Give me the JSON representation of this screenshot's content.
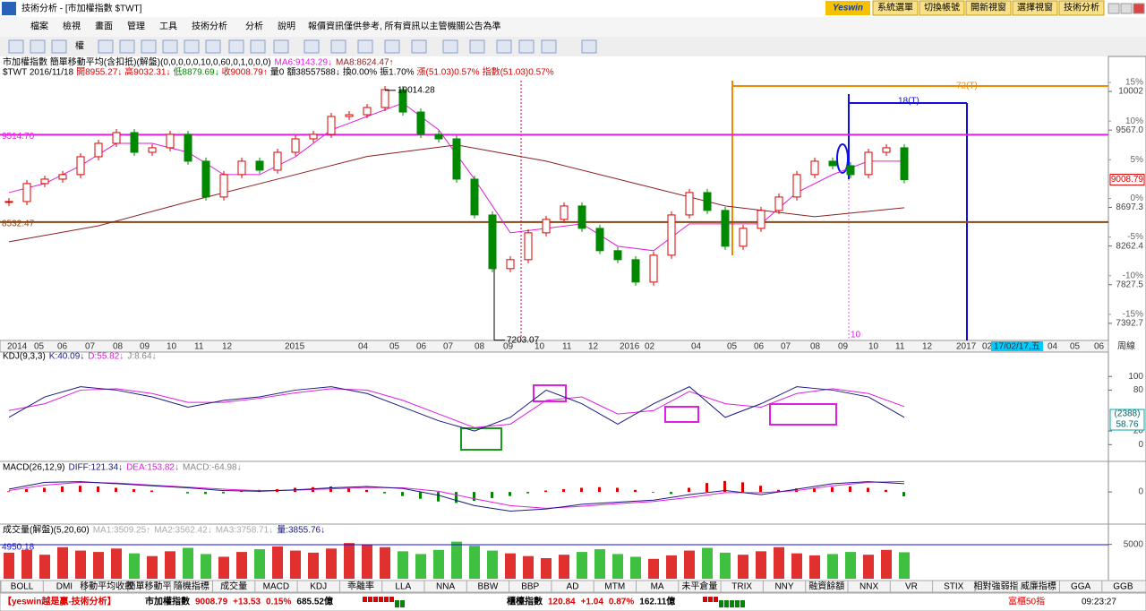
{
  "window": {
    "title": "技術分析 - [市加權指數 $TWT]",
    "logo": "Yeswin",
    "buttons": [
      "系統選單",
      "切換帳號",
      "開新視窗",
      "選擇視窗",
      "技術分析"
    ]
  },
  "menu": {
    "items": [
      "檔案",
      "檢視",
      "畫面",
      "管理",
      "工具",
      "技術分析",
      "分析",
      "說明"
    ],
    "notice": "報價資訊僅供參考, 所有資訊以主管機關公告為準"
  },
  "toolbar": {
    "label": "權"
  },
  "price_panel": {
    "header": [
      "市加權指數 簡單移動平均(含扣抵)(解盤)(0,0,0,0,0,10,0,60,0,1,0,0,0)",
      "MA6:9143.29↓",
      "MA8:8624.47↑"
    ],
    "quote": [
      "$TWT 2016/11/18",
      "開8955.27↓",
      "高9032.31↓",
      "低8879.69↓",
      "收9008.79↑",
      "量0",
      "額38557588↓",
      "換0.00%",
      "振1.70%",
      "漲(51.03)0.57%",
      "指數(51.03)0.57%"
    ],
    "ylim": [
      7200,
      10325
    ],
    "yticks": [
      10002,
      {
        "value": 9567,
        "label": "9567.0"
      },
      8697.3,
      8262.4,
      7827.5,
      7392.7
    ],
    "last_price": 9008.79,
    "pct_ticks": [
      {
        "value": 15,
        "label": "15%"
      },
      {
        "value": 10,
        "label": "10%"
      },
      {
        "value": 5,
        "label": "5%"
      },
      {
        "value": 0,
        "label": "0%"
      },
      {
        "value": -5,
        "label": "-5%"
      },
      {
        "value": -10,
        "label": "-10%"
      },
      {
        "value": -15,
        "label": "-15%"
      }
    ],
    "closes": [
      8763,
      8965,
      9015,
      9066,
      9267,
      9418,
      9539,
      9317,
      9368,
      9519,
      9217,
      8814,
      9066,
      9217,
      9116,
      9317,
      9468,
      9519,
      9720,
      9740,
      9821,
      10022,
      9770,
      9519,
      9468,
      9015,
      8612,
      8008,
      8109,
      8411,
      8562,
      8713,
      8461,
      8210,
      8109,
      7857,
      8159,
      8612,
      8864,
      8663,
      8260,
      8461,
      8663,
      8814,
      9066,
      9217,
      9166,
      9066,
      9317,
      9368,
      9008.79
    ],
    "ma_short": [
      8864,
      8965,
      9166,
      9418,
      9418,
      9317,
      9066,
      9066,
      9267,
      9569,
      9720,
      9871,
      9569,
      9015,
      8411,
      8461,
      8512,
      8260,
      8210,
      8512,
      8512,
      8512,
      8864,
      9066,
      9217,
      9217
    ],
    "ma_long": [
      8310,
      8490,
      8760,
      9015,
      9270,
      9400,
      9217,
      8965,
      8713,
      8592,
      8693
    ],
    "high_mark": 10014.28,
    "low_mark": 7203.07,
    "hlines": [
      {
        "value": 9514.7,
        "label": "9514.70",
        "color": "#e81ee8"
      },
      {
        "value": 8532.47,
        "color": "#8b4513"
      }
    ],
    "annotations": [
      "72(T)",
      "18(T)",
      "10"
    ],
    "time_labels": [
      "2014",
      "05",
      "06",
      "07",
      "08",
      "09",
      "10",
      "11",
      "12",
      "2015",
      "04",
      "05",
      "06",
      "07",
      "08",
      "09",
      "10",
      "11",
      "12",
      "2016",
      "02",
      "04",
      "05",
      "06",
      "07",
      "08",
      "09",
      "10",
      "11",
      "12",
      "2017",
      "02",
      "17/02/17,五",
      "04",
      "05",
      "06",
      "周線"
    ]
  },
  "kdj_panel": {
    "header": [
      "KDJ(9,3,3)",
      "K:40.09↓",
      "D:55.82↓",
      "J:8.64↓"
    ],
    "ylim": [
      -18,
      120
    ],
    "yticks": [
      100,
      80,
      20,
      0
    ],
    "badge": [
      "(2388)",
      "58.76"
    ],
    "k": [
      40,
      70,
      85,
      80,
      70,
      55,
      65,
      70,
      80,
      85,
      75,
      55,
      35,
      20,
      40,
      80,
      60,
      30,
      60,
      85,
      40,
      60,
      85,
      80,
      70,
      40.09
    ],
    "d": [
      50,
      60,
      80,
      82,
      75,
      62,
      62,
      68,
      76,
      82,
      80,
      65,
      45,
      25,
      30,
      65,
      70,
      45,
      50,
      78,
      60,
      55,
      75,
      82,
      75,
      55.82
    ]
  },
  "macd_panel": {
    "header": [
      "MACD(26,12,9)",
      "DIFF:121.34↓",
      "DEA:153.82↓",
      "MACD:-64.98↓"
    ],
    "ylim": [
      -300,
      250
    ],
    "yticks": [
      0
    ],
    "diff": [
      40,
      140,
      150,
      120,
      90,
      60,
      20,
      10,
      30,
      60,
      80,
      50,
      -50,
      -200,
      -280,
      -250,
      -180,
      -150,
      -120,
      -40,
      20,
      -40,
      40,
      120,
      150,
      121.34
    ],
    "dea": [
      20,
      100,
      140,
      130,
      100,
      70,
      40,
      20,
      25,
      45,
      65,
      60,
      10,
      -100,
      -200,
      -240,
      -210,
      -170,
      -140,
      -80,
      -10,
      -10,
      20,
      90,
      140,
      153.82
    ],
    "hist": [
      10,
      40,
      60,
      80,
      90,
      80,
      60,
      40,
      20,
      0,
      -20,
      -30,
      -20,
      10,
      30,
      40,
      60,
      70,
      80,
      60,
      30,
      -20,
      -60,
      -100,
      -140,
      -160,
      -130,
      -90,
      -60,
      -20,
      20,
      40,
      60,
      70,
      60,
      30,
      -10,
      -30,
      60,
      130,
      160,
      140,
      90,
      30,
      50,
      60,
      70,
      80,
      60,
      30,
      -64.98
    ]
  },
  "volume_panel": {
    "header": [
      "成交量(解盤)(5,20,60)",
      "MA1:3509.25↑",
      "MA2:3562.42↓",
      "MA3:3758.71↓",
      "量:3855.76↓"
    ],
    "ylim": [
      0,
      6000
    ],
    "yticks": [
      5000
    ],
    "hline": 4950.18,
    "values": [
      3800,
      4200,
      3500,
      4600,
      4100,
      3900,
      4400,
      3700,
      3300,
      4000,
      4500,
      3600,
      3200,
      3900,
      4300,
      4700,
      4100,
      3800,
      4400,
      5200,
      5000,
      4600,
      4000,
      3600,
      4200,
      5400,
      4800,
      4100,
      3700,
      3300,
      3000,
      3500,
      3900,
      4300,
      3600,
      3200,
      2900,
      3400,
      4100,
      4500,
      3800,
      3500,
      4000,
      4600,
      3700,
      3400,
      3600,
      3900,
      3500,
      4200,
      3855.76
    ]
  },
  "tabs": [
    "BOLL",
    "DMI",
    "移動平均收斂",
    "簡單移動平",
    "隨機指標",
    "成交量",
    "MACD",
    "KDJ",
    "乖離率",
    "LLA",
    "NNA",
    "BBW",
    "BBP",
    "AD",
    "MTM",
    "MA",
    "未平倉量",
    "TRIX",
    "NNY",
    "融資餘額",
    "NNX",
    "VR",
    "STIX",
    "相對強弱指",
    "威廉指標",
    "GGA",
    "GGB"
  ],
  "status": {
    "brand": "【yeswin越是贏-技術分析】",
    "taiex": [
      "市加權指數",
      "9008.79",
      "+13.53",
      "0.15%",
      "685.52億"
    ],
    "otc": [
      "櫃檯指數",
      "120.84",
      "+1.04",
      "0.87%",
      "162.11億"
    ],
    "otc50": "富櫃50指",
    "time": "09:23:27"
  }
}
